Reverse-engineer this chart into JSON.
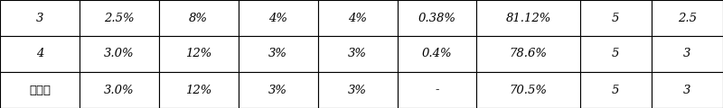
{
  "rows": [
    [
      "3",
      "2.5%",
      "8%",
      "4%",
      "4%",
      "0.38%",
      "81.12%",
      "5",
      "2.5"
    ],
    [
      "4",
      "3.0%",
      "12%",
      "3%",
      "3%",
      "0.4%",
      "78.6%",
      "5",
      "3"
    ],
    [
      "对比例",
      "3.0%",
      "12%",
      "3%",
      "3%",
      "-",
      "70.5%",
      "5",
      "3"
    ]
  ],
  "col_widths_rel": [
    1.0,
    1.0,
    1.0,
    1.0,
    1.0,
    1.0,
    1.3,
    0.9,
    0.9
  ],
  "background_color": "#ffffff",
  "border_color": "#000000",
  "text_color": "#000000",
  "font_size": 9.5,
  "figwidth": 8.0,
  "figheight": 1.2,
  "dpi": 100
}
